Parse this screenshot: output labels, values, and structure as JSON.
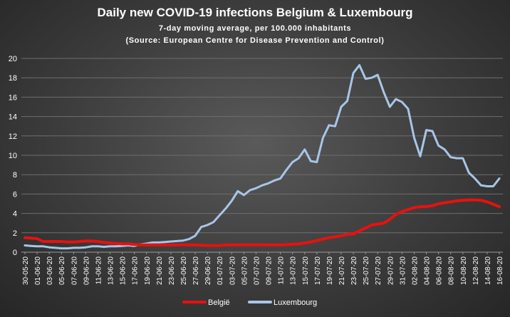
{
  "chart_data": {
    "type": "line",
    "title": "Daily new COVID-19 infections Belgium & Luxembourg",
    "subtitle": "7-day moving average,  per 100.000 inhabitants",
    "source": "(Source:  European  Centre  for  Disease  Prevention   and  Control)",
    "ylim": [
      0,
      20
    ],
    "yticks": [
      "0",
      "2",
      "4",
      "6",
      "8",
      "10",
      "12",
      "14",
      "16",
      "18",
      "20"
    ],
    "grid": true,
    "legend_position": "bottom",
    "x": [
      "30-05-20",
      "31-05-20",
      "01-06-20",
      "02-06-20",
      "03-06-20",
      "04-06-20",
      "05-06-20",
      "06-06-20",
      "07-06-20",
      "08-06-20",
      "09-06-20",
      "10-06-20",
      "11-06-20",
      "12-06-20",
      "13-06-20",
      "14-06-20",
      "15-06-20",
      "16-06-20",
      "17-06-20",
      "18-06-20",
      "19-06-20",
      "20-06-20",
      "21-06-20",
      "22-06-20",
      "23-06-20",
      "24-06-20",
      "25-06-20",
      "26-06-20",
      "27-06-20",
      "28-06-20",
      "29-06-20",
      "30-06-20",
      "01-07-20",
      "02-07-20",
      "03-07-20",
      "04-07-20",
      "05-07-20",
      "06-07-20",
      "07-07-20",
      "08-07-20",
      "09-07-20",
      "10-07-20",
      "11-07-20",
      "12-07-20",
      "13-07-20",
      "14-07-20",
      "15-07-20",
      "16-07-20",
      "17-07-20",
      "18-07-20",
      "19-07-20",
      "20-07-20",
      "21-07-20",
      "22-07-20",
      "23-07-20",
      "24-07-20",
      "25-07-20",
      "26-07-20",
      "27-07-20",
      "28-07-20",
      "29-07-20",
      "30-07-20",
      "31-07-20",
      "01-08-20",
      "02-08-20",
      "03-08-20",
      "04-08-20",
      "05-08-20",
      "06-08-20",
      "07-08-20",
      "08-08-20",
      "09-08-20",
      "10-08-20",
      "11-08-20",
      "12-08-20",
      "13-08-20",
      "14-08-20",
      "15-08-20",
      "16-08-20"
    ],
    "xtick_labels": [
      "30-05-20",
      "01-06-20",
      "03-06-20",
      "05-06-20",
      "07-06-20",
      "09-06-20",
      "11-06-20",
      "13-06-20",
      "15-06-20",
      "17-06-20",
      "19-06-20",
      "21-06-20",
      "23-06-20",
      "25-06-20",
      "27-06-20",
      "29-06-20",
      "01-07-20",
      "03-07-20",
      "05-07-20",
      "07-07-20",
      "09-07-20",
      "11-07-20",
      "13-07-20",
      "15-07-20",
      "17-07-20",
      "19-07-20",
      "21-07-20",
      "23-07-20",
      "25-07-20",
      "27-07-20",
      "29-07-20",
      "31-07-20",
      "02-08-20",
      "04-08-20",
      "06-08-20",
      "08-08-20",
      "10-08-20",
      "12-08-20",
      "14-08-20",
      "16-08-20"
    ],
    "series": [
      {
        "name": "België",
        "color": "#e8110f",
        "values": [
          1.5,
          1.45,
          1.4,
          1.1,
          1.1,
          1.1,
          1.1,
          1.05,
          1.05,
          1.1,
          1.15,
          1.15,
          1.1,
          1.0,
          0.95,
          0.9,
          0.85,
          0.85,
          0.8,
          0.75,
          0.75,
          0.75,
          0.75,
          0.75,
          0.75,
          0.75,
          0.75,
          0.75,
          0.75,
          0.72,
          0.7,
          0.68,
          0.7,
          0.75,
          0.75,
          0.75,
          0.75,
          0.75,
          0.75,
          0.75,
          0.75,
          0.75,
          0.75,
          0.78,
          0.82,
          0.85,
          0.95,
          1.05,
          1.2,
          1.35,
          1.5,
          1.6,
          1.7,
          1.85,
          1.9,
          2.2,
          2.5,
          2.8,
          2.9,
          3.0,
          3.4,
          3.9,
          4.2,
          4.4,
          4.6,
          4.7,
          4.7,
          4.8,
          5.0,
          5.1,
          5.2,
          5.3,
          5.35,
          5.4,
          5.4,
          5.35,
          5.2,
          4.95,
          4.7
        ]
      },
      {
        "name": "Luxembourg",
        "color": "#a7c6e8",
        "values": [
          0.7,
          0.65,
          0.6,
          0.6,
          0.5,
          0.45,
          0.4,
          0.4,
          0.45,
          0.45,
          0.5,
          0.6,
          0.6,
          0.55,
          0.6,
          0.6,
          0.65,
          0.7,
          0.65,
          0.8,
          0.9,
          1.0,
          1.0,
          1.05,
          1.1,
          1.15,
          1.2,
          1.35,
          1.7,
          2.6,
          2.8,
          3.1,
          3.8,
          4.5,
          5.3,
          6.3,
          5.9,
          6.4,
          6.6,
          6.9,
          7.1,
          7.4,
          7.6,
          8.5,
          9.3,
          9.7,
          10.6,
          9.4,
          9.3,
          11.8,
          13.1,
          13.0,
          15.0,
          15.6,
          18.5,
          19.3,
          17.9,
          18.0,
          18.3,
          16.5,
          15.0,
          15.8,
          15.5,
          14.8,
          11.8,
          9.9,
          12.6,
          12.5,
          11.0,
          10.6,
          9.8,
          9.7,
          9.7,
          8.2,
          7.6,
          6.9,
          6.8,
          6.8,
          7.6
        ]
      }
    ]
  }
}
